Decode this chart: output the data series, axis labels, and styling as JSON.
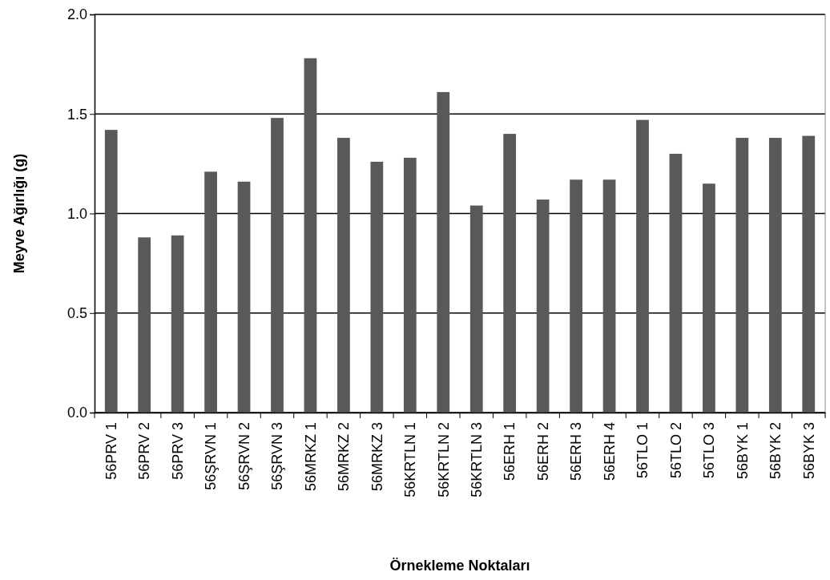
{
  "chart_data": {
    "type": "bar",
    "xlabel": "Örnekleme Noktaları",
    "ylabel": "Meyve Ağırlığı (g)",
    "categories": [
      "56PRV 1",
      "56PRV 2",
      "56PRV 3",
      "56ŞRVN 1",
      "56ŞRVN 2",
      "56ŞRVN 3",
      "56MRKZ 1",
      "56MRKZ 2",
      "56MRKZ 3",
      "56KRTLN 1",
      "56KRTLN 2",
      "56KRTLN 3",
      "56ERH 1",
      "56ERH 2",
      "56ERH 3",
      "56ERH 4",
      "56TLO 1",
      "56TLO 2",
      "56TLO 3",
      "56BYK 1",
      "56BYK 2",
      "56BYK 3"
    ],
    "values": [
      1.42,
      0.88,
      0.89,
      1.21,
      1.16,
      1.48,
      1.78,
      1.38,
      1.26,
      1.28,
      1.61,
      1.04,
      1.4,
      1.07,
      1.17,
      1.17,
      1.47,
      1.3,
      1.15,
      1.38,
      1.38,
      1.39
    ],
    "color": "#595959",
    "ylim": [
      0,
      2
    ],
    "yticks": [
      {
        "value": 0,
        "label": "0.0"
      },
      {
        "value": 0.5,
        "label": "0.5"
      },
      {
        "value": 1,
        "label": "1.0"
      },
      {
        "value": 1.5,
        "label": "1.5"
      },
      {
        "value": 2,
        "label": "2.0"
      }
    ],
    "grid": "y"
  }
}
